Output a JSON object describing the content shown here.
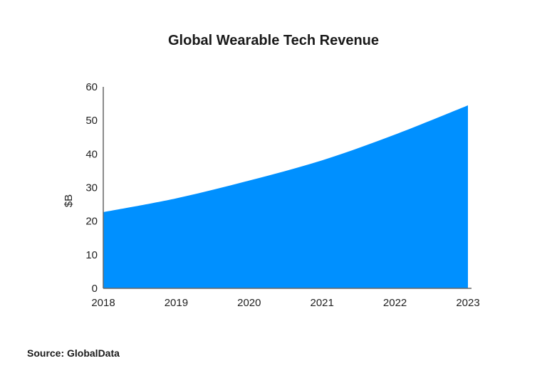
{
  "chart_data": {
    "type": "area",
    "title": "Global Wearable Tech Revenue",
    "xlabel": "",
    "ylabel": "$B",
    "categories": [
      "2018",
      "2019",
      "2020",
      "2021",
      "2022",
      "2023"
    ],
    "values": [
      22.7,
      26.8,
      32.1,
      38.1,
      45.8,
      54.5
    ],
    "ylim": [
      0,
      60
    ],
    "yticks": [
      0,
      10,
      20,
      30,
      40,
      50,
      60
    ],
    "grid": false,
    "color": "#0090ff"
  },
  "source": "Source: GlobalData"
}
